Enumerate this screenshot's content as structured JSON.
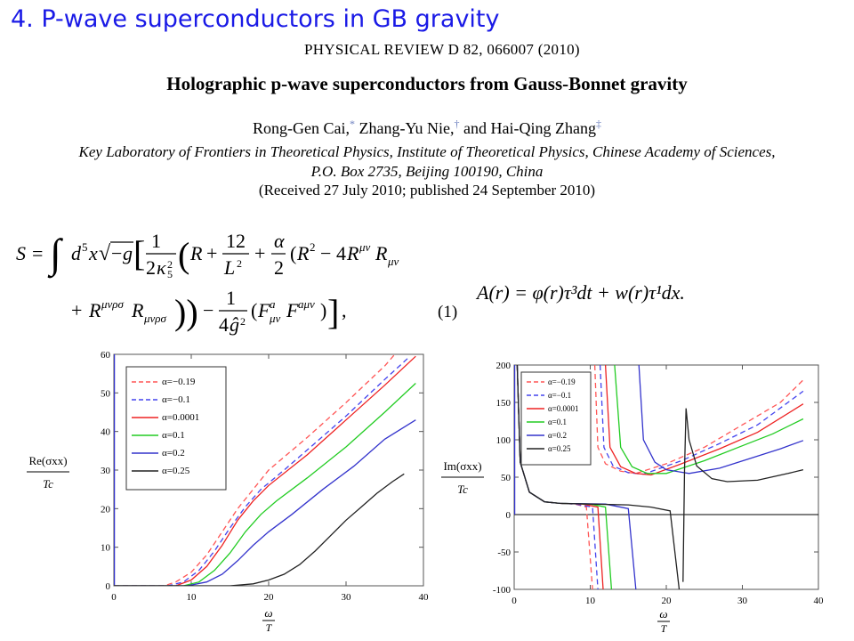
{
  "slide": {
    "title": "4. P-wave superconductors in GB gravity"
  },
  "paper": {
    "journal": "PHYSICAL REVIEW D 82, 066007 (2010)",
    "title": "Holographic p-wave superconductors from Gauss-Bonnet gravity",
    "authors": [
      {
        "name": "Rong-Gen Cai,",
        "mark": "*"
      },
      {
        "name": "Zhang-Yu Nie,",
        "mark": "†"
      },
      {
        "name": "and Hai-Qing Zhang",
        "mark": "‡"
      }
    ],
    "affiliation_line1": "Key Laboratory of Frontiers in Theoretical Physics, Institute of Theoretical Physics, Chinese Academy of Sciences,",
    "affiliation_line2": "P.O. Box 2735, Beijing 100190, China",
    "received": "(Received 27 July 2010; published 24 September 2010)"
  },
  "equations": {
    "action_number": "(1)",
    "ansatz": "A(r) = φ(r)τ³dt + w(r)τ¹dx."
  },
  "chart_data": [
    {
      "type": "line",
      "xlabel": "ω/T",
      "ylabel": "Re(σxx)/Tc",
      "xlim": [
        0,
        40
      ],
      "ylim": [
        0,
        60
      ],
      "x_ticks": [
        0,
        10,
        20,
        30,
        40
      ],
      "y_ticks": [
        0,
        10,
        20,
        30,
        40,
        50,
        60
      ],
      "legend_position": "top-left",
      "series": [
        {
          "name": "α=−0.19",
          "color": "#ff5555",
          "dash": true,
          "points": [
            [
              0,
              0
            ],
            [
              6.5,
              0
            ],
            [
              8,
              1
            ],
            [
              10,
              3.5
            ],
            [
              12,
              8
            ],
            [
              14,
              14
            ],
            [
              16,
              20
            ],
            [
              18,
              25
            ],
            [
              20,
              30
            ],
            [
              25,
              38.5
            ],
            [
              30,
              47.5
            ],
            [
              35,
              57
            ],
            [
              36.3,
              60
            ]
          ]
        },
        {
          "name": "α=−0.1",
          "color": "#4444ee",
          "dash": true,
          "points": [
            [
              0,
              0
            ],
            [
              7,
              0
            ],
            [
              9,
              1
            ],
            [
              11,
              4
            ],
            [
              13,
              9
            ],
            [
              15,
              15
            ],
            [
              17,
              20.5
            ],
            [
              19,
              25
            ],
            [
              22,
              30
            ],
            [
              26,
              37
            ],
            [
              30,
              44
            ],
            [
              35,
              53.5
            ],
            [
              38,
              59
            ]
          ]
        },
        {
          "name": "α=0.0001",
          "color": "#ee2222",
          "dash": false,
          "points": [
            [
              0,
              0
            ],
            [
              8,
              0
            ],
            [
              10,
              1.5
            ],
            [
              12,
              5
            ],
            [
              14,
              10.5
            ],
            [
              16,
              17
            ],
            [
              18,
              22
            ],
            [
              20,
              26
            ],
            [
              25,
              34
            ],
            [
              30,
              43
            ],
            [
              35,
              52
            ],
            [
              39,
              59.5
            ]
          ]
        },
        {
          "name": "α=0.1",
          "color": "#22cc22",
          "dash": false,
          "points": [
            [
              0,
              0
            ],
            [
              9,
              0
            ],
            [
              11,
              1
            ],
            [
              13,
              4
            ],
            [
              15,
              8.5
            ],
            [
              17,
              14
            ],
            [
              19,
              18.5
            ],
            [
              21,
              22
            ],
            [
              25,
              28
            ],
            [
              30,
              36
            ],
            [
              35,
              45
            ],
            [
              39,
              52.5
            ]
          ]
        },
        {
          "name": "α=0.2",
          "color": "#3333cc",
          "dash": false,
          "points": [
            [
              0,
              0
            ],
            [
              9.5,
              0
            ],
            [
              12,
              1
            ],
            [
              14,
              3
            ],
            [
              16,
              6.5
            ],
            [
              18,
              10.5
            ],
            [
              20,
              14
            ],
            [
              23,
              18.5
            ],
            [
              27,
              25
            ],
            [
              31,
              31
            ],
            [
              35,
              38
            ],
            [
              39,
              43
            ]
          ]
        },
        {
          "name": "α=0.25",
          "color": "#222222",
          "dash": false,
          "points": [
            [
              0,
              0
            ],
            [
              15,
              0
            ],
            [
              18,
              0.5
            ],
            [
              20,
              1.5
            ],
            [
              22,
              3
            ],
            [
              24,
              5.5
            ],
            [
              26,
              9
            ],
            [
              28,
              13
            ],
            [
              30,
              17
            ],
            [
              32,
              20.5
            ],
            [
              34,
              24
            ],
            [
              36,
              27
            ],
            [
              37.5,
              29
            ]
          ]
        }
      ]
    },
    {
      "type": "line",
      "xlabel": "ω/T",
      "ylabel": "Im(σxx)/Tc",
      "xlim": [
        0,
        40
      ],
      "ylim": [
        -100,
        200
      ],
      "x_ticks": [
        0,
        10,
        20,
        30,
        40
      ],
      "y_ticks": [
        -100,
        -50,
        0,
        50,
        100,
        150,
        200
      ],
      "legend_position": "top-left",
      "series": [
        {
          "name": "α=−0.19",
          "color": "#ff5555",
          "dash": true,
          "points": [
            [
              0.4,
              200
            ],
            [
              0.8,
              70
            ],
            [
              2,
              30
            ],
            [
              4,
              17
            ],
            [
              6,
              15
            ],
            [
              8,
              14
            ],
            [
              9.5,
              10
            ],
            [
              10.3,
              -100
            ],
            [
              null,
              null
            ],
            [
              10.6,
              200
            ],
            [
              11,
              90
            ],
            [
              12,
              68
            ],
            [
              14,
              58
            ],
            [
              16,
              55
            ],
            [
              20,
              68
            ],
            [
              25,
              90
            ],
            [
              30,
              120
            ],
            [
              35,
              150
            ],
            [
              38,
              180
            ]
          ]
        },
        {
          "name": "α=−0.1",
          "color": "#4444ee",
          "dash": true,
          "points": [
            [
              0.4,
              200
            ],
            [
              0.8,
              70
            ],
            [
              2,
              30
            ],
            [
              4,
              17
            ],
            [
              6,
              15
            ],
            [
              8,
              14
            ],
            [
              10.3,
              10
            ],
            [
              11,
              -100
            ],
            [
              null,
              null
            ],
            [
              11.3,
              200
            ],
            [
              11.8,
              90
            ],
            [
              13,
              65
            ],
            [
              15,
              56
            ],
            [
              17,
              54
            ],
            [
              22,
              72
            ],
            [
              27,
              95
            ],
            [
              32,
              120
            ],
            [
              38,
              165
            ]
          ]
        },
        {
          "name": "α=0.0001",
          "color": "#ee2222",
          "dash": false,
          "points": [
            [
              0.4,
              200
            ],
            [
              0.8,
              70
            ],
            [
              2,
              30
            ],
            [
              4,
              17
            ],
            [
              6,
              15
            ],
            [
              9,
              14
            ],
            [
              11,
              10
            ],
            [
              11.7,
              -100
            ],
            [
              null,
              null
            ],
            [
              12,
              200
            ],
            [
              12.6,
              90
            ],
            [
              14,
              64
            ],
            [
              16,
              55
            ],
            [
              18,
              53
            ],
            [
              22,
              68
            ],
            [
              27,
              88
            ],
            [
              32,
              110
            ],
            [
              38,
              148
            ]
          ]
        },
        {
          "name": "α=0.1",
          "color": "#22cc22",
          "dash": false,
          "points": [
            [
              0.4,
              200
            ],
            [
              0.8,
              70
            ],
            [
              2,
              30
            ],
            [
              4,
              17
            ],
            [
              6,
              15
            ],
            [
              10,
              14
            ],
            [
              12,
              10
            ],
            [
              12.8,
              -100
            ],
            [
              null,
              null
            ],
            [
              13.2,
              200
            ],
            [
              14,
              90
            ],
            [
              15.5,
              64
            ],
            [
              17.5,
              55
            ],
            [
              20,
              55
            ],
            [
              25,
              72
            ],
            [
              30,
              92
            ],
            [
              34,
              108
            ],
            [
              38,
              128
            ]
          ]
        },
        {
          "name": "α=0.2",
          "color": "#3333cc",
          "dash": false,
          "points": [
            [
              0.4,
              200
            ],
            [
              0.8,
              70
            ],
            [
              2,
              30
            ],
            [
              4,
              17
            ],
            [
              6,
              15
            ],
            [
              12,
              14
            ],
            [
              15,
              8
            ],
            [
              16,
              -100
            ],
            [
              null,
              null
            ],
            [
              16.4,
              200
            ],
            [
              17,
              100
            ],
            [
              18.5,
              70
            ],
            [
              20,
              60
            ],
            [
              23,
              55
            ],
            [
              27,
              62
            ],
            [
              31,
              75
            ],
            [
              35,
              88
            ],
            [
              38,
              99
            ]
          ]
        },
        {
          "name": "α=0.25",
          "color": "#222222",
          "dash": false,
          "points": [
            [
              0.4,
              200
            ],
            [
              0.8,
              70
            ],
            [
              2,
              30
            ],
            [
              4,
              17
            ],
            [
              6,
              15
            ],
            [
              10,
              14
            ],
            [
              15,
              13
            ],
            [
              18,
              10
            ],
            [
              20.5,
              5
            ],
            [
              21.7,
              -100
            ],
            [
              null,
              null
            ],
            [
              22.2,
              -90
            ],
            [
              22.4,
              60
            ],
            [
              22.6,
              142
            ],
            [
              23,
              100
            ],
            [
              24,
              65
            ],
            [
              26,
              48
            ],
            [
              28,
              44
            ],
            [
              32,
              46
            ],
            [
              36,
              55
            ],
            [
              38,
              60
            ]
          ]
        }
      ]
    }
  ]
}
